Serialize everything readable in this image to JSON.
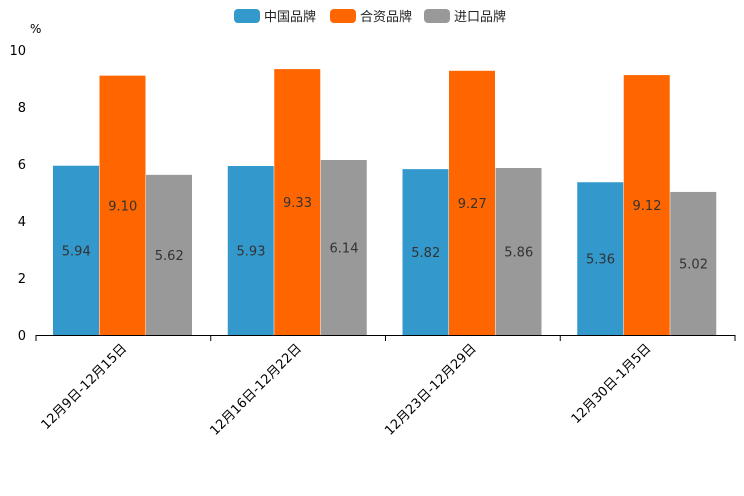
{
  "chart_data": {
    "type": "bar",
    "title": "",
    "unit_label": "%",
    "xlabel": "",
    "ylabel": "",
    "ylim": [
      0,
      10
    ],
    "yticks": [
      0,
      2,
      4,
      6,
      8,
      10
    ],
    "grid": false,
    "legend_position": "top-center",
    "categories": [
      "12月9日-12月15日",
      "12月16日-12月22日",
      "12月23日-12月29日",
      "12月30日-1月5日"
    ],
    "series": [
      {
        "name": "中国品牌",
        "color": "#3399cc",
        "values": [
          5.94,
          5.93,
          5.82,
          5.36
        ],
        "labels": [
          "5.94",
          "5.93",
          "5.82",
          "5.36"
        ]
      },
      {
        "name": "合资品牌",
        "color": "#ff6600",
        "values": [
          9.1,
          9.33,
          9.27,
          9.12
        ],
        "labels": [
          "9.10",
          "9.33",
          "9.27",
          "9.12"
        ]
      },
      {
        "name": "进口品牌",
        "color": "#999999",
        "values": [
          5.62,
          6.14,
          5.86,
          5.02
        ],
        "labels": [
          "5.62",
          "6.14",
          "5.86",
          "5.02"
        ]
      }
    ]
  }
}
